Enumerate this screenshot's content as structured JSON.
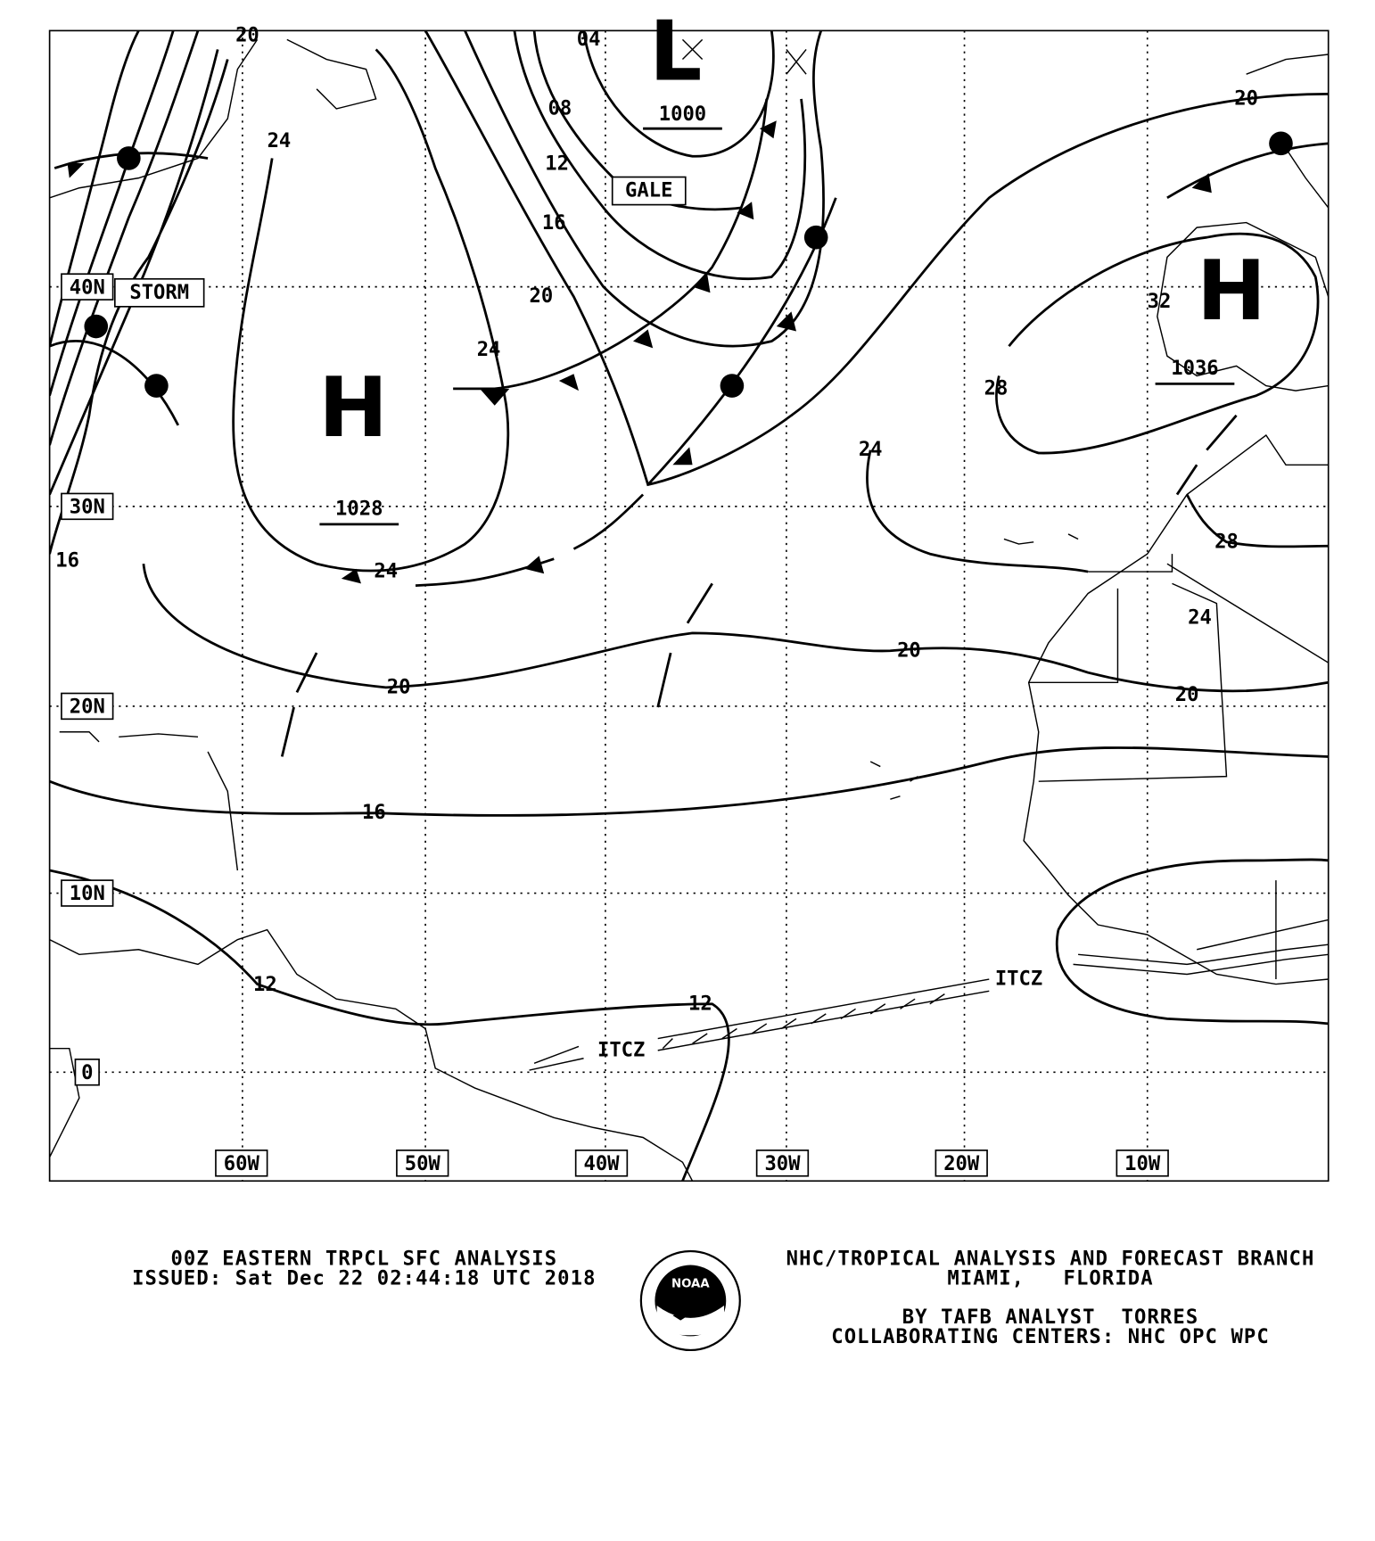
{
  "map": {
    "latitude_labels": [
      "40N",
      "30N",
      "20N",
      "10N",
      "0"
    ],
    "longitude_labels": [
      "60W",
      "50W",
      "40W",
      "30W",
      "20W",
      "10W"
    ],
    "pressure_centers": [
      {
        "symbol": "H",
        "value": "1028"
      },
      {
        "symbol": "L",
        "value": "1000"
      },
      {
        "symbol": "H",
        "value": "1036"
      }
    ],
    "isobar_labels": [
      "20",
      "24",
      "04",
      "08",
      "12",
      "16",
      "20",
      "24",
      "20",
      "32",
      "28",
      "24",
      "28",
      "24",
      "20",
      "20",
      "24",
      "20",
      "16",
      "16",
      "12",
      "12"
    ],
    "warnings": [
      "GALE",
      "STORM"
    ],
    "itcz_labels": [
      "ITCZ",
      "ITCZ"
    ]
  },
  "footer": {
    "title": "00Z EASTERN TRPCL SFC ANALYSIS",
    "issued": "ISSUED: Sat Dec 22 02:44:18 UTC 2018",
    "branch": "NHC/TROPICAL ANALYSIS AND FORECAST BRANCH",
    "location": "MIAMI,   FLORIDA",
    "analyst": "BY TAFB ANALYST  TORRES",
    "centers": "COLLABORATING CENTERS: NHC OPC WPC",
    "logo": "NOAA"
  }
}
